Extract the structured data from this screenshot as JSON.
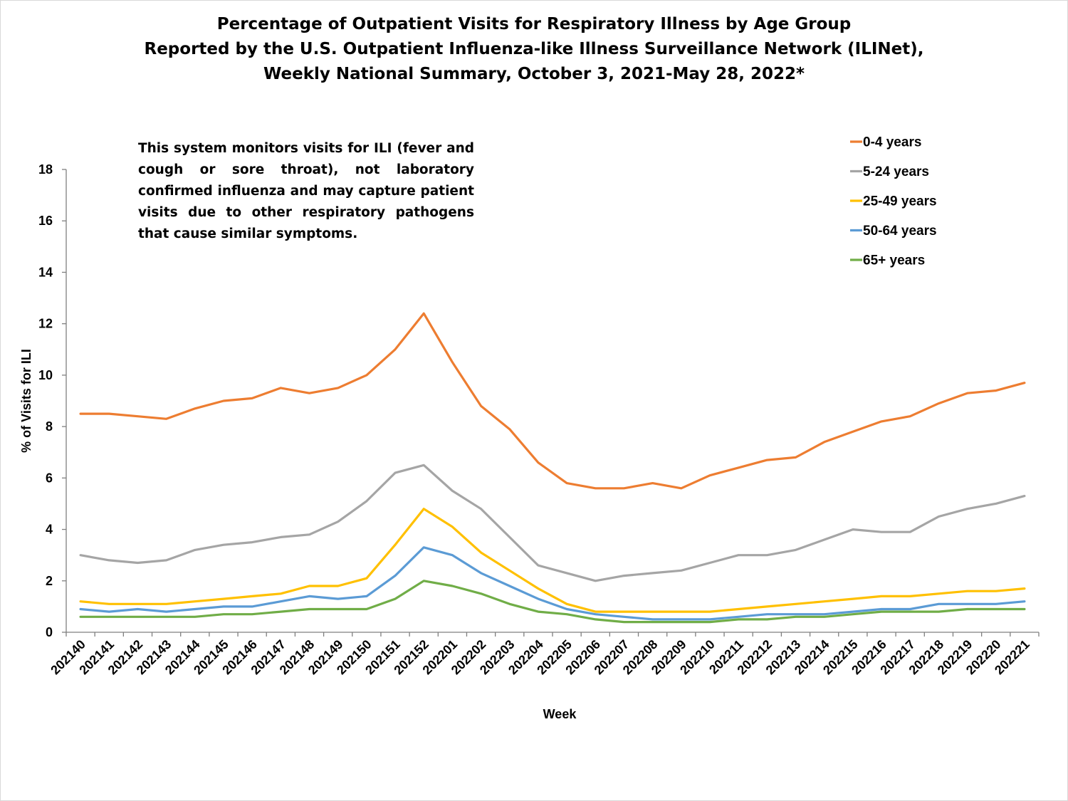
{
  "title": {
    "line1": "Percentage of Outpatient Visits for Respiratory Illness by Age Group",
    "line2": "Reported by the U.S. Outpatient Influenza-like Illness Surveillance Network (ILINet),",
    "line3": "Weekly National Summary, October 3, 2021-May 28, 2022*"
  },
  "note": "This system monitors visits for ILI (fever and cough or sore throat), not laboratory confirmed influenza and may capture patient visits due to other respiratory pathogens that cause similar symptoms.",
  "chart_data": {
    "type": "line",
    "title": "Percentage of Outpatient Visits for Respiratory Illness by Age Group",
    "xlabel": "Week",
    "ylabel": "% of Visits for ILI",
    "ylim": [
      0,
      18
    ],
    "yticks": [
      0,
      2,
      4,
      6,
      8,
      10,
      12,
      14,
      16,
      18
    ],
    "grid": false,
    "legend_position": "top-right",
    "categories": [
      "202140",
      "202141",
      "202142",
      "202143",
      "202144",
      "202145",
      "202146",
      "202147",
      "202148",
      "202149",
      "202150",
      "202151",
      "202152",
      "202201",
      "202202",
      "202203",
      "202204",
      "202205",
      "202206",
      "202207",
      "202208",
      "202209",
      "202210",
      "202211",
      "202212",
      "202213",
      "202214",
      "202215",
      "202216",
      "202217",
      "202218",
      "202219",
      "202220",
      "202221"
    ],
    "series": [
      {
        "name": "0-4 years",
        "color": "#ED7D31",
        "values": [
          8.5,
          8.5,
          8.4,
          8.3,
          8.7,
          9.0,
          9.1,
          9.5,
          9.3,
          9.5,
          10.0,
          11.0,
          12.4,
          10.5,
          8.8,
          7.9,
          6.6,
          5.8,
          5.6,
          5.6,
          5.8,
          5.6,
          6.1,
          6.4,
          6.7,
          6.8,
          7.4,
          7.8,
          8.2,
          8.4,
          8.9,
          9.3,
          9.4,
          9.7
        ]
      },
      {
        "name": "5-24 years",
        "color": "#A5A5A5",
        "values": [
          3.0,
          2.8,
          2.7,
          2.8,
          3.2,
          3.4,
          3.5,
          3.7,
          3.8,
          4.3,
          5.1,
          6.2,
          6.5,
          5.5,
          4.8,
          3.7,
          2.6,
          2.3,
          2.0,
          2.2,
          2.3,
          2.4,
          2.7,
          3.0,
          3.0,
          3.2,
          3.6,
          4.0,
          3.9,
          3.9,
          4.5,
          4.8,
          5.0,
          5.3
        ]
      },
      {
        "name": "25-49 years",
        "color": "#FFC000",
        "values": [
          1.2,
          1.1,
          1.1,
          1.1,
          1.2,
          1.3,
          1.4,
          1.5,
          1.8,
          1.8,
          2.1,
          3.4,
          4.8,
          4.1,
          3.1,
          2.4,
          1.7,
          1.1,
          0.8,
          0.8,
          0.8,
          0.8,
          0.8,
          0.9,
          1.0,
          1.1,
          1.2,
          1.3,
          1.4,
          1.4,
          1.5,
          1.6,
          1.6,
          1.7
        ]
      },
      {
        "name": "50-64 years",
        "color": "#5B9BD5",
        "values": [
          0.9,
          0.8,
          0.9,
          0.8,
          0.9,
          1.0,
          1.0,
          1.2,
          1.4,
          1.3,
          1.4,
          2.2,
          3.3,
          3.0,
          2.3,
          1.8,
          1.3,
          0.9,
          0.7,
          0.6,
          0.5,
          0.5,
          0.5,
          0.6,
          0.7,
          0.7,
          0.7,
          0.8,
          0.9,
          0.9,
          1.1,
          1.1,
          1.1,
          1.2
        ]
      },
      {
        "name": "65+ years",
        "color": "#70AD47",
        "values": [
          0.6,
          0.6,
          0.6,
          0.6,
          0.6,
          0.7,
          0.7,
          0.8,
          0.9,
          0.9,
          0.9,
          1.3,
          2.0,
          1.8,
          1.5,
          1.1,
          0.8,
          0.7,
          0.5,
          0.4,
          0.4,
          0.4,
          0.4,
          0.5,
          0.5,
          0.6,
          0.6,
          0.7,
          0.8,
          0.8,
          0.8,
          0.9,
          0.9,
          0.9
        ]
      }
    ]
  }
}
